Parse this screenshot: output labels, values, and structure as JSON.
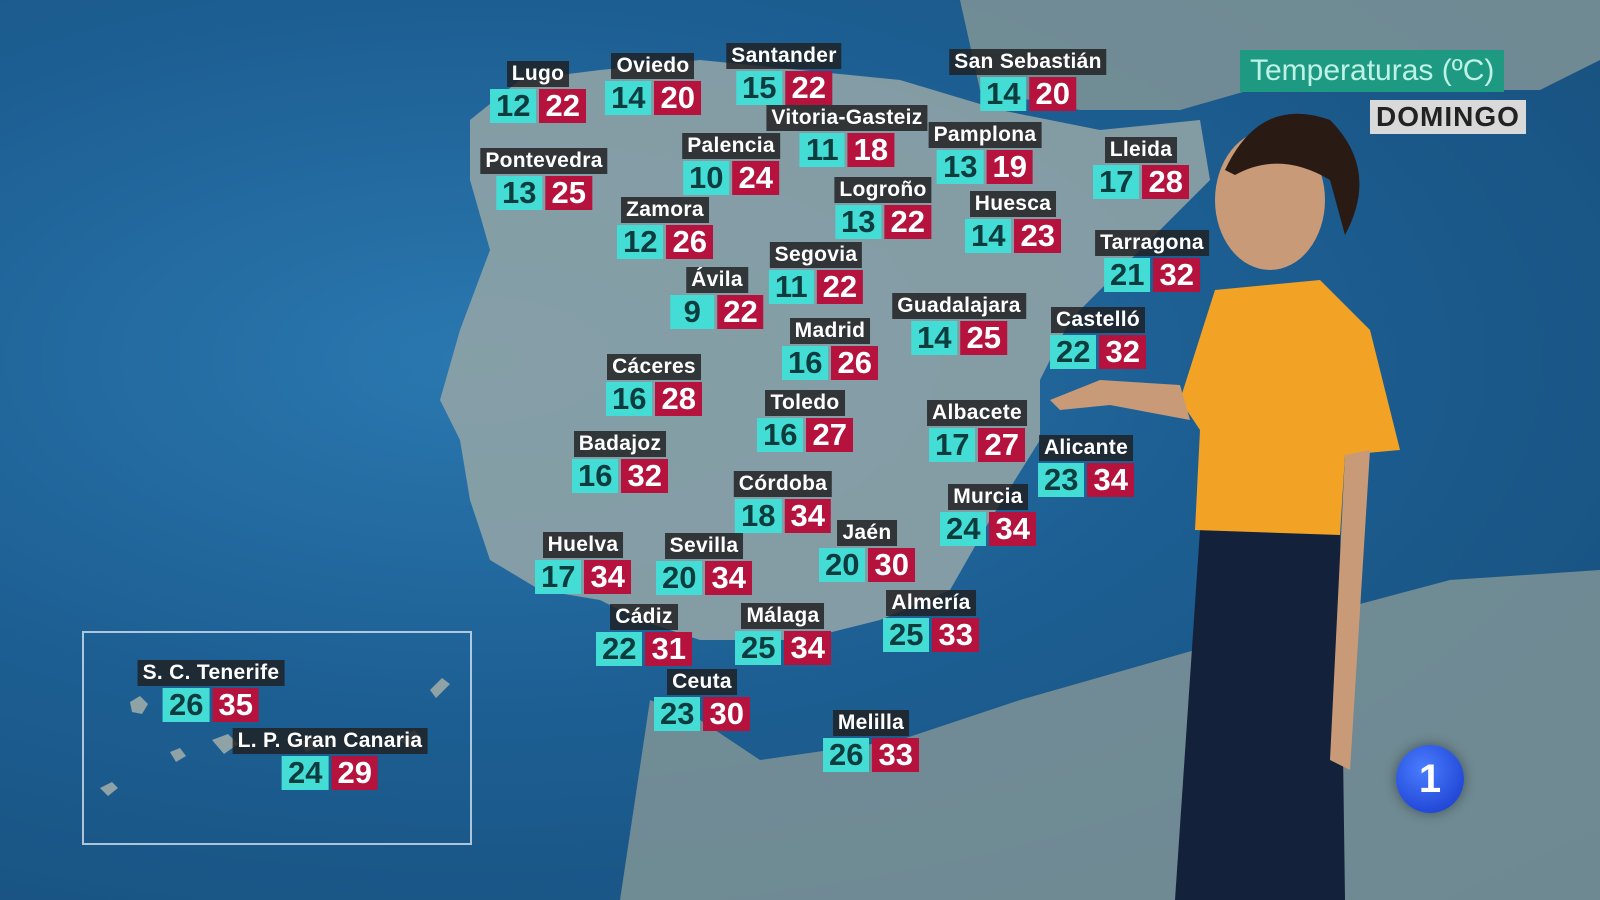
{
  "header": {
    "title": "Temperaturas (ºC)",
    "day": "DOMINGO"
  },
  "colors": {
    "min_bg": "#43ddd6",
    "max_bg": "#b5123e",
    "label_bg": "#1e1e20",
    "title_bg": "#1f9a82"
  },
  "channel_logo": "1",
  "cities": [
    {
      "name": "Lugo",
      "min": "12",
      "max": "22"
    },
    {
      "name": "Oviedo",
      "min": "14",
      "max": "20"
    },
    {
      "name": "Santander",
      "min": "15",
      "max": "22"
    },
    {
      "name": "Vitoria-Gasteiz",
      "min": "11",
      "max": "18"
    },
    {
      "name": "San Sebastián",
      "min": "14",
      "max": "20"
    },
    {
      "name": "Pamplona",
      "min": "13",
      "max": "19"
    },
    {
      "name": "Lleida",
      "min": "17",
      "max": "28"
    },
    {
      "name": "Pontevedra",
      "min": "13",
      "max": "25"
    },
    {
      "name": "Palencia",
      "min": "10",
      "max": "24"
    },
    {
      "name": "Logroño",
      "min": "13",
      "max": "22"
    },
    {
      "name": "Huesca",
      "min": "14",
      "max": "23"
    },
    {
      "name": "Tarragona",
      "min": "21",
      "max": "32"
    },
    {
      "name": "Zamora",
      "min": "12",
      "max": "26"
    },
    {
      "name": "Segovia",
      "min": "11",
      "max": "22"
    },
    {
      "name": "Ávila",
      "min": "9",
      "max": "22"
    },
    {
      "name": "Guadalajara",
      "min": "14",
      "max": "25"
    },
    {
      "name": "Castelló",
      "min": "22",
      "max": "32"
    },
    {
      "name": "Madrid",
      "min": "16",
      "max": "26"
    },
    {
      "name": "Cáceres",
      "min": "16",
      "max": "28"
    },
    {
      "name": "Toledo",
      "min": "16",
      "max": "27"
    },
    {
      "name": "Albacete",
      "min": "17",
      "max": "27"
    },
    {
      "name": "Badajoz",
      "min": "16",
      "max": "32"
    },
    {
      "name": "Alicante",
      "min": "23",
      "max": "34"
    },
    {
      "name": "Córdoba",
      "min": "18",
      "max": "34"
    },
    {
      "name": "Murcia",
      "min": "24",
      "max": "34"
    },
    {
      "name": "Jaén",
      "min": "20",
      "max": "30"
    },
    {
      "name": "Huelva",
      "min": "17",
      "max": "34"
    },
    {
      "name": "Sevilla",
      "min": "20",
      "max": "34"
    },
    {
      "name": "Cádiz",
      "min": "22",
      "max": "31"
    },
    {
      "name": "Málaga",
      "min": "25",
      "max": "34"
    },
    {
      "name": "Almería",
      "min": "25",
      "max": "33"
    },
    {
      "name": "Ceuta",
      "min": "23",
      "max": "30"
    },
    {
      "name": "Melilla",
      "min": "26",
      "max": "33"
    },
    {
      "name": "S. C. Tenerife",
      "min": "26",
      "max": "35"
    },
    {
      "name": "L. P. Gran Canaria",
      "min": "24",
      "max": "29"
    }
  ]
}
